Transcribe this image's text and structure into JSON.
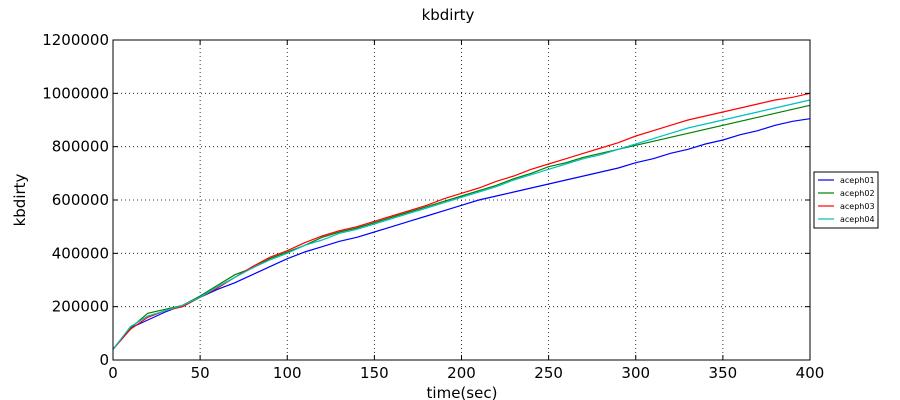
{
  "chart_data": {
    "type": "line",
    "title": "kbdirty",
    "xlabel": "time(sec)",
    "ylabel": "kbdirty",
    "xlim": [
      0,
      400
    ],
    "ylim": [
      0,
      1200000
    ],
    "xticks": [
      "0",
      "50",
      "100",
      "150",
      "200",
      "250",
      "300",
      "350",
      "400"
    ],
    "yticks": [
      "0",
      "200000",
      "400000",
      "600000",
      "800000",
      "1000000",
      "1200000"
    ],
    "grid": true,
    "legend_position": "right",
    "x": [
      0,
      10,
      20,
      30,
      40,
      50,
      60,
      70,
      80,
      90,
      100,
      110,
      120,
      130,
      140,
      150,
      160,
      170,
      180,
      190,
      200,
      210,
      220,
      230,
      240,
      250,
      260,
      270,
      280,
      290,
      300,
      310,
      320,
      330,
      340,
      350,
      360,
      370,
      380,
      390,
      400
    ],
    "series": [
      {
        "name": "aceph01",
        "color": "#0000ff",
        "values": [
          40000,
          120000,
          150000,
          180000,
          205000,
          235000,
          265000,
          290000,
          320000,
          350000,
          380000,
          405000,
          425000,
          445000,
          460000,
          480000,
          500000,
          520000,
          540000,
          560000,
          580000,
          600000,
          615000,
          630000,
          645000,
          660000,
          675000,
          690000,
          705000,
          720000,
          740000,
          755000,
          775000,
          790000,
          810000,
          825000,
          845000,
          860000,
          880000,
          895000,
          905000
        ]
      },
      {
        "name": "aceph02",
        "color": "#008000",
        "values": [
          40000,
          120000,
          175000,
          190000,
          205000,
          240000,
          280000,
          320000,
          345000,
          380000,
          405000,
          430000,
          460000,
          480000,
          495000,
          515000,
          535000,
          555000,
          575000,
          595000,
          615000,
          635000,
          655000,
          680000,
          700000,
          725000,
          740000,
          760000,
          775000,
          790000,
          805000,
          820000,
          835000,
          850000,
          865000,
          880000,
          895000,
          910000,
          925000,
          940000,
          955000
        ]
      },
      {
        "name": "aceph03",
        "color": "#ff0000",
        "values": [
          40000,
          115000,
          160000,
          185000,
          200000,
          235000,
          270000,
          310000,
          350000,
          385000,
          410000,
          440000,
          465000,
          485000,
          500000,
          520000,
          540000,
          560000,
          580000,
          605000,
          625000,
          645000,
          670000,
          690000,
          715000,
          735000,
          755000,
          775000,
          795000,
          815000,
          840000,
          860000,
          880000,
          900000,
          915000,
          930000,
          945000,
          960000,
          975000,
          985000,
          1000000
        ]
      },
      {
        "name": "aceph04",
        "color": "#00bfbf",
        "values": [
          40000,
          125000,
          165000,
          185000,
          205000,
          235000,
          275000,
          310000,
          345000,
          375000,
          400000,
          430000,
          450000,
          475000,
          490000,
          510000,
          530000,
          550000,
          570000,
          590000,
          610000,
          630000,
          650000,
          675000,
          695000,
          715000,
          735000,
          755000,
          770000,
          790000,
          810000,
          830000,
          850000,
          870000,
          885000,
          900000,
          915000,
          930000,
          945000,
          960000,
          975000
        ]
      }
    ]
  }
}
